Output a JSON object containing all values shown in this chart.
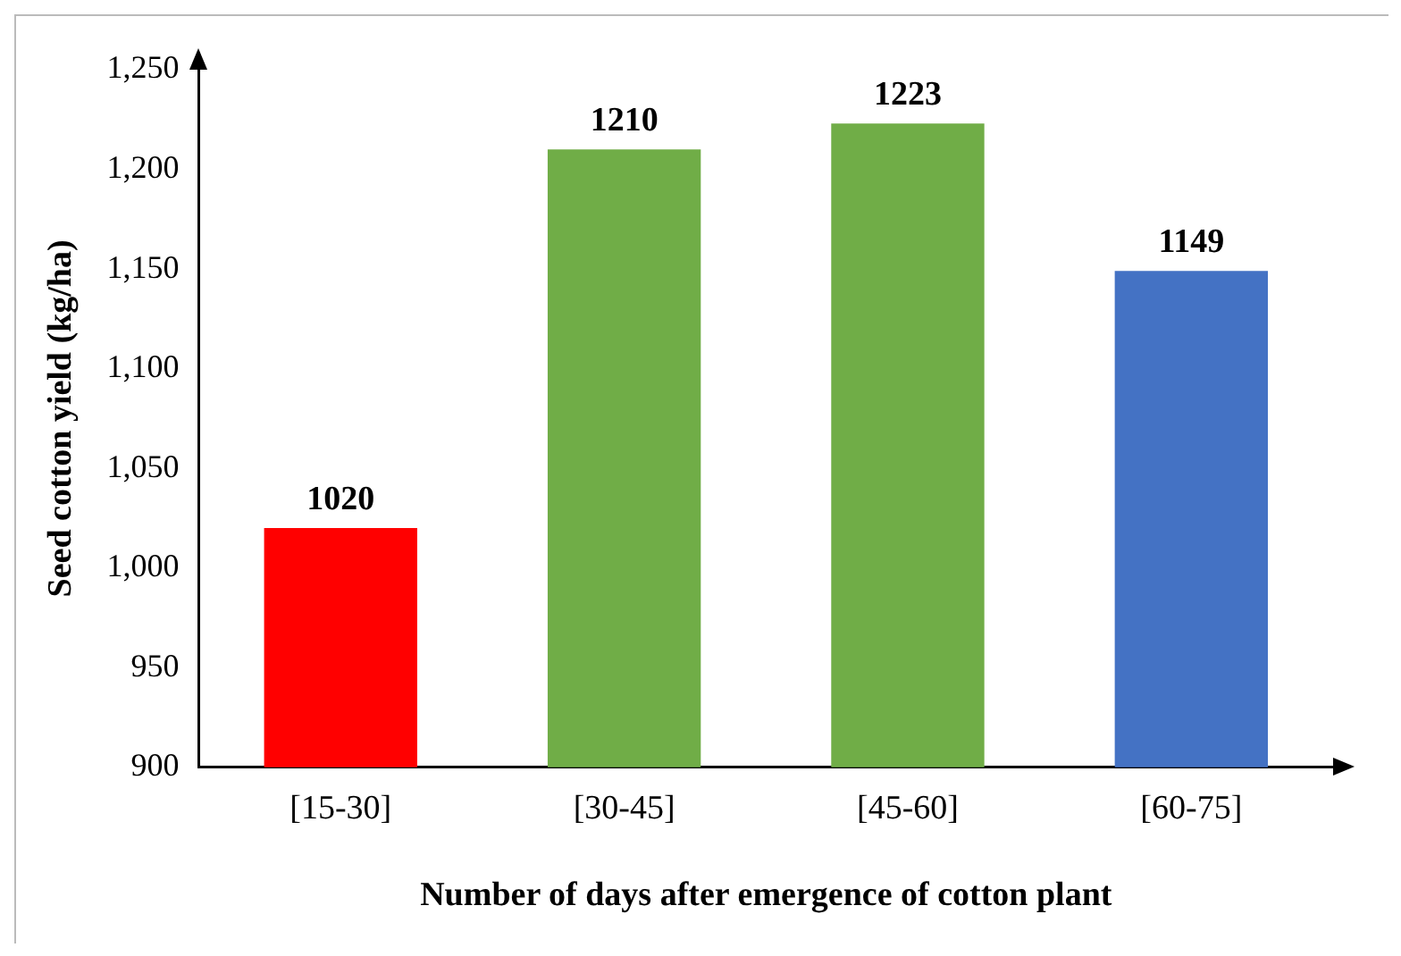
{
  "chart_data": {
    "type": "bar",
    "xlabel": "Number of days after emergence of cotton plant",
    "ylabel": "Seed cotton yield (kg/ha)",
    "categories": [
      "[15-30]",
      "[30-45]",
      "[45-60]",
      "[60-75]"
    ],
    "values": [
      1020,
      1210,
      1223,
      1149
    ],
    "colors": [
      "#ff0000",
      "#70ad47",
      "#70ad47",
      "#4472c4"
    ],
    "ylim": [
      900,
      1250
    ],
    "yticks": [
      900,
      950,
      {
        "value": 1000,
        "label": "1,000"
      },
      {
        "value": 1050,
        "label": "1,050"
      },
      {
        "value": 1100,
        "label": "1,100"
      },
      {
        "value": 1150,
        "label": "1,150"
      },
      {
        "value": 1200,
        "label": "1,200"
      },
      {
        "value": 1250,
        "label": "1,250"
      }
    ],
    "grid": false,
    "legend": false,
    "data_labels": true
  }
}
